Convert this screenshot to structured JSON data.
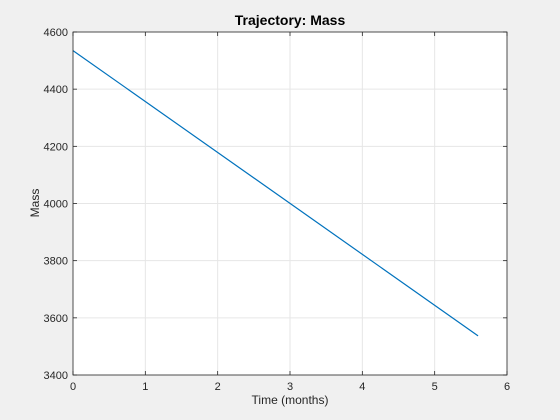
{
  "window": {
    "background": "#f0f0f0"
  },
  "chart_data": {
    "type": "line",
    "title": "Trajectory: Mass",
    "xlabel": "Time (months)",
    "ylabel": "Mass",
    "xlim": [
      0,
      6
    ],
    "ylim": [
      3400,
      4600
    ],
    "xticks": [
      0,
      1,
      2,
      3,
      4,
      5,
      6
    ],
    "yticks": [
      3400,
      3600,
      3800,
      4000,
      4200,
      4400,
      4600
    ],
    "grid": true,
    "legend": null,
    "series": [
      {
        "color": "#0072bd",
        "x": [
          0,
          5.6
        ],
        "y": [
          4535,
          3537
        ]
      }
    ],
    "colors": {
      "axes_background": "#ffffff",
      "axis": "#262626",
      "grid": "#e6e6e6",
      "line": "#0072bd"
    }
  }
}
